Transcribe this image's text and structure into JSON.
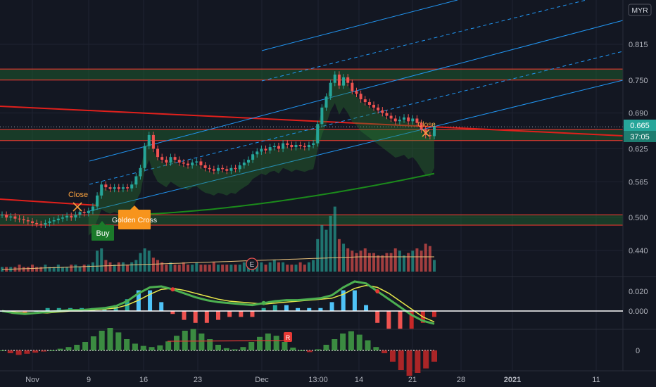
{
  "currency": "MYR",
  "last_price": "0.665",
  "countdown": "37:05",
  "markers": {
    "close_left": "Close",
    "close_right": "Close",
    "buy": "Buy",
    "golden_cross": "Golden Cross",
    "earnings": "E",
    "revision": "R"
  },
  "colors": {
    "up": "#26a69a",
    "down": "#ef5350",
    "background": "#131722",
    "accent_price": "#26a69a",
    "resistance": "#ff3b30",
    "channel": "#2196f3",
    "sma_long": "#1b8a1b",
    "macd_line": "#4caf50",
    "signal_line": "#e8e84a"
  },
  "chart_data": [
    {
      "type": "candlestick",
      "panel": "price",
      "ylim": [
        0.4,
        0.87
      ],
      "ytick_labels": [
        "0.815",
        "0.750",
        "0.690",
        "0.625",
        "0.565",
        "0.500",
        "0.440"
      ],
      "ytick_values": [
        0.815,
        0.75,
        0.69,
        0.625,
        0.565,
        0.5,
        0.44
      ],
      "x_labels": [
        "Nov",
        "9",
        "16",
        "23",
        "Dec",
        "13:00",
        "14",
        "21",
        "28",
        "2021",
        "11"
      ],
      "series": [
        {
          "kind": "close",
          "values": [
            0.505,
            0.5,
            0.502,
            0.498,
            0.497,
            0.495,
            0.493,
            0.49,
            0.488,
            0.487,
            0.49,
            0.493,
            0.495,
            0.498,
            0.5,
            0.503,
            0.5,
            0.505,
            0.51,
            0.508,
            0.512,
            0.52,
            0.54,
            0.56,
            0.555,
            0.552,
            0.555,
            0.552,
            0.555,
            0.553,
            0.56,
            0.575,
            0.59,
            0.63,
            0.65,
            0.625,
            0.61,
            0.605,
            0.6,
            0.61,
            0.605,
            0.6,
            0.598,
            0.595,
            0.6,
            0.602,
            0.595,
            0.59,
            0.588,
            0.585,
            0.59,
            0.588,
            0.585,
            0.59,
            0.588,
            0.595,
            0.6,
            0.605,
            0.615,
            0.62,
            0.625,
            0.622,
            0.628,
            0.63,
            0.625,
            0.635,
            0.632,
            0.628,
            0.632,
            0.63,
            0.628,
            0.632,
            0.635,
            0.67,
            0.7,
            0.72,
            0.745,
            0.76,
            0.74,
            0.755,
            0.745,
            0.73,
            0.725,
            0.715,
            0.71,
            0.705,
            0.7,
            0.695,
            0.69,
            0.685,
            0.68,
            0.675,
            0.678,
            0.682,
            0.675,
            0.68,
            0.672,
            0.66,
            0.65,
            0.648,
            0.665
          ]
        },
        {
          "name": "SMA long",
          "from": 0.505,
          "to": 0.58
        },
        {
          "name": "Volume MA"
        }
      ],
      "levels": [
        0.77,
        0.75,
        0.66,
        0.64,
        0.505,
        0.486
      ],
      "last": 0.665
    },
    {
      "type": "line",
      "panel": "macd",
      "ylim": [
        -0.03,
        0.04
      ],
      "ytick_labels": [
        "0.020",
        "0.000"
      ],
      "ytick_values": [
        0.02,
        0.0
      ],
      "series": [
        {
          "name": "MACD",
          "values": [
            0.0,
            -0.002,
            -0.003,
            -0.002,
            -0.001,
            0.0,
            0.001,
            0.001,
            0.002,
            0.003,
            0.005,
            0.01,
            0.018,
            0.024,
            0.025,
            0.022,
            0.018,
            0.014,
            0.011,
            0.009,
            0.008,
            0.007,
            0.006,
            0.008,
            0.01,
            0.011,
            0.011,
            0.012,
            0.013,
            0.016,
            0.024,
            0.03,
            0.028,
            0.02,
            0.012,
            0.004,
            -0.004,
            -0.01,
            -0.013
          ]
        },
        {
          "name": "Signal",
          "values": [
            0.0,
            -0.001,
            -0.002,
            -0.002,
            -0.002,
            -0.001,
            0.0,
            0.0,
            0.001,
            0.002,
            0.003,
            0.006,
            0.011,
            0.017,
            0.022,
            0.023,
            0.021,
            0.018,
            0.015,
            0.012,
            0.01,
            0.009,
            0.008,
            0.007,
            0.008,
            0.009,
            0.01,
            0.011,
            0.012,
            0.013,
            0.017,
            0.023,
            0.026,
            0.024,
            0.018,
            0.01,
            0.002,
            -0.006,
            -0.011
          ]
        }
      ]
    },
    {
      "type": "bar",
      "panel": "oscillator",
      "ytick_labels": [
        "0"
      ],
      "ytick_values": [
        0
      ],
      "values": [
        0.0,
        -0.5,
        -0.8,
        -0.6,
        -0.4,
        -0.2,
        0.0,
        0.3,
        0.6,
        1.0,
        1.5,
        2.5,
        3.5,
        4.0,
        3.2,
        2.0,
        1.2,
        0.8,
        0.6,
        0.9,
        1.6,
        2.6,
        3.5,
        3.8,
        3.0,
        2.0,
        1.0,
        0.4,
        0.2,
        0.6,
        1.5,
        2.4,
        3.0,
        2.6,
        1.5,
        0.5,
        0.0,
        -0.3,
        0.2,
        1.0,
        2.0,
        3.0,
        3.4,
        2.8,
        1.8,
        0.6,
        -0.5,
        -2.0,
        -3.5,
        -4.5,
        -4.0,
        -3.2,
        -2.0
      ]
    }
  ]
}
